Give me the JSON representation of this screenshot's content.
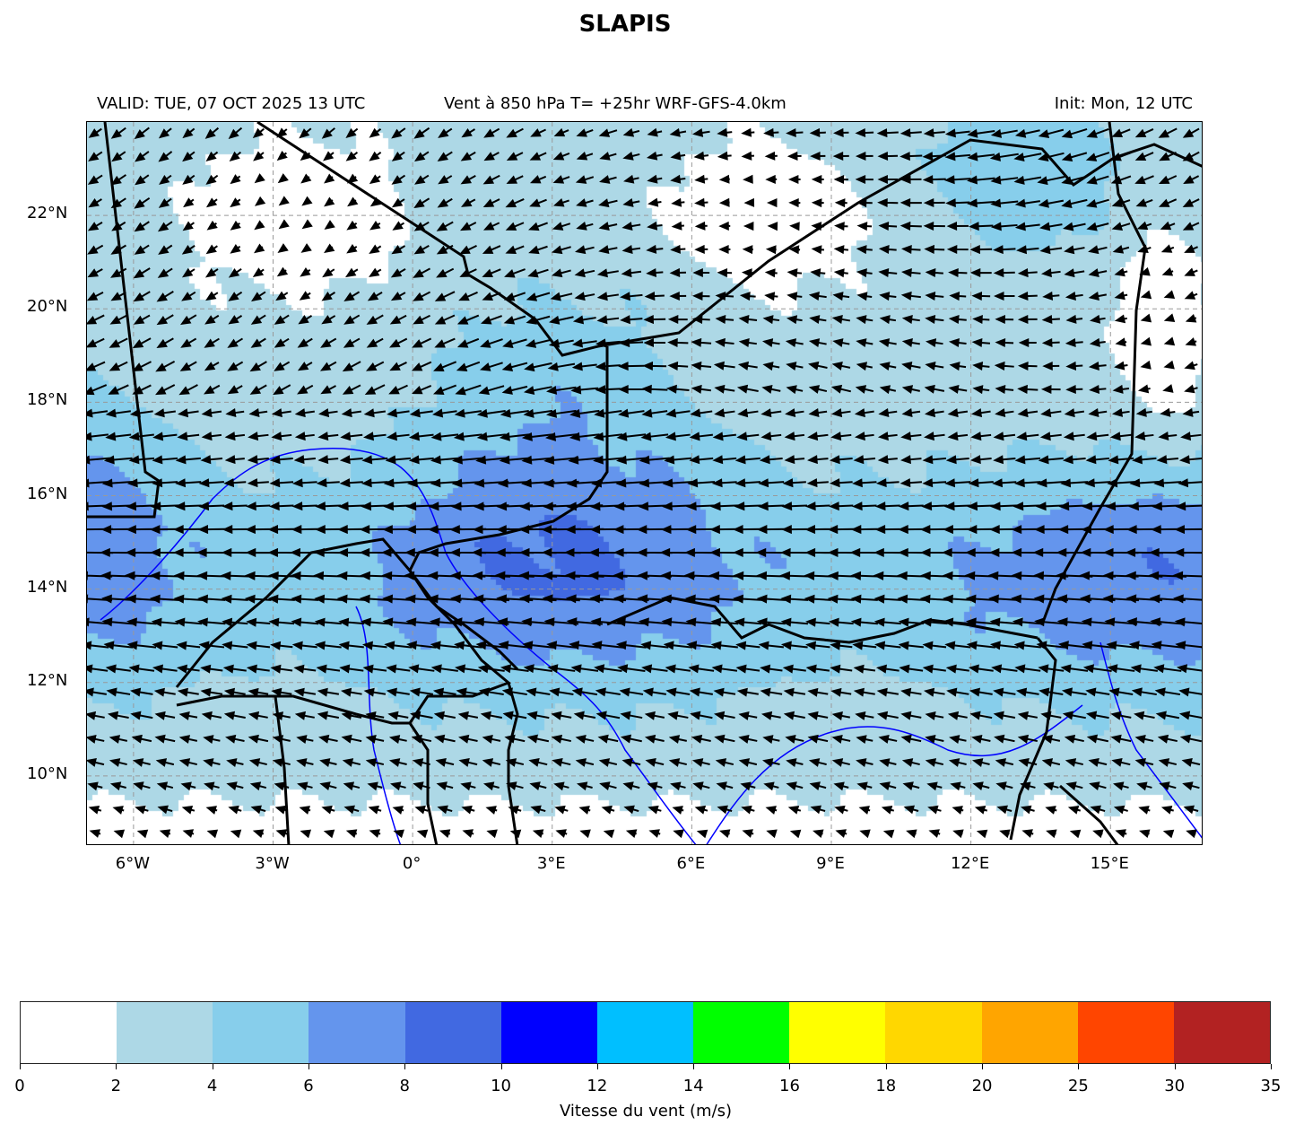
{
  "title": "SLAPIS",
  "subtitle_left": "VALID: TUE, 07 OCT 2025 13 UTC",
  "subtitle_center": "Vent à 850 hPa T= +25hr  WRF-GFS-4.0km",
  "subtitle_right": "Init: Mon, 12 UTC",
  "chart_data": {
    "type": "heatmap",
    "title": "SLAPIS",
    "lon_range": [
      -7,
      17
    ],
    "lat_range": [
      8.5,
      24
    ],
    "x_ticks": [
      "6°W",
      "3°W",
      "0°",
      "3°E",
      "6°E",
      "9°E",
      "12°E",
      "15°E"
    ],
    "x_tick_values": [
      -6,
      -3,
      0,
      3,
      6,
      9,
      12,
      15
    ],
    "y_ticks": [
      "10°N",
      "12°N",
      "14°N",
      "16°N",
      "18°N",
      "20°N",
      "22°N"
    ],
    "y_tick_values": [
      10,
      12,
      14,
      16,
      18,
      20,
      22
    ],
    "grid": true,
    "colorbar": {
      "label": "Vitesse du vent (m/s)",
      "levels": [
        0,
        2,
        4,
        6,
        8,
        10,
        12,
        14,
        16,
        18,
        20,
        25,
        30,
        35
      ],
      "tick_labels": [
        "0",
        "2",
        "4",
        "6",
        "8",
        "10",
        "12",
        "14",
        "16",
        "18",
        "20",
        "25",
        "30",
        "35"
      ],
      "colors": [
        "#ffffff",
        "#add8e6",
        "#87ceeb",
        "#6495ed",
        "#4169e1",
        "#0000ff",
        "#00bfff",
        "#00ff00",
        "#ffff00",
        "#ffd700",
        "#ffa500",
        "#ff4500",
        "#b22222"
      ],
      "placement": "bottom"
    },
    "border_color": "#000000",
    "river_color": "#0000ff",
    "vector_color": "#000000"
  }
}
